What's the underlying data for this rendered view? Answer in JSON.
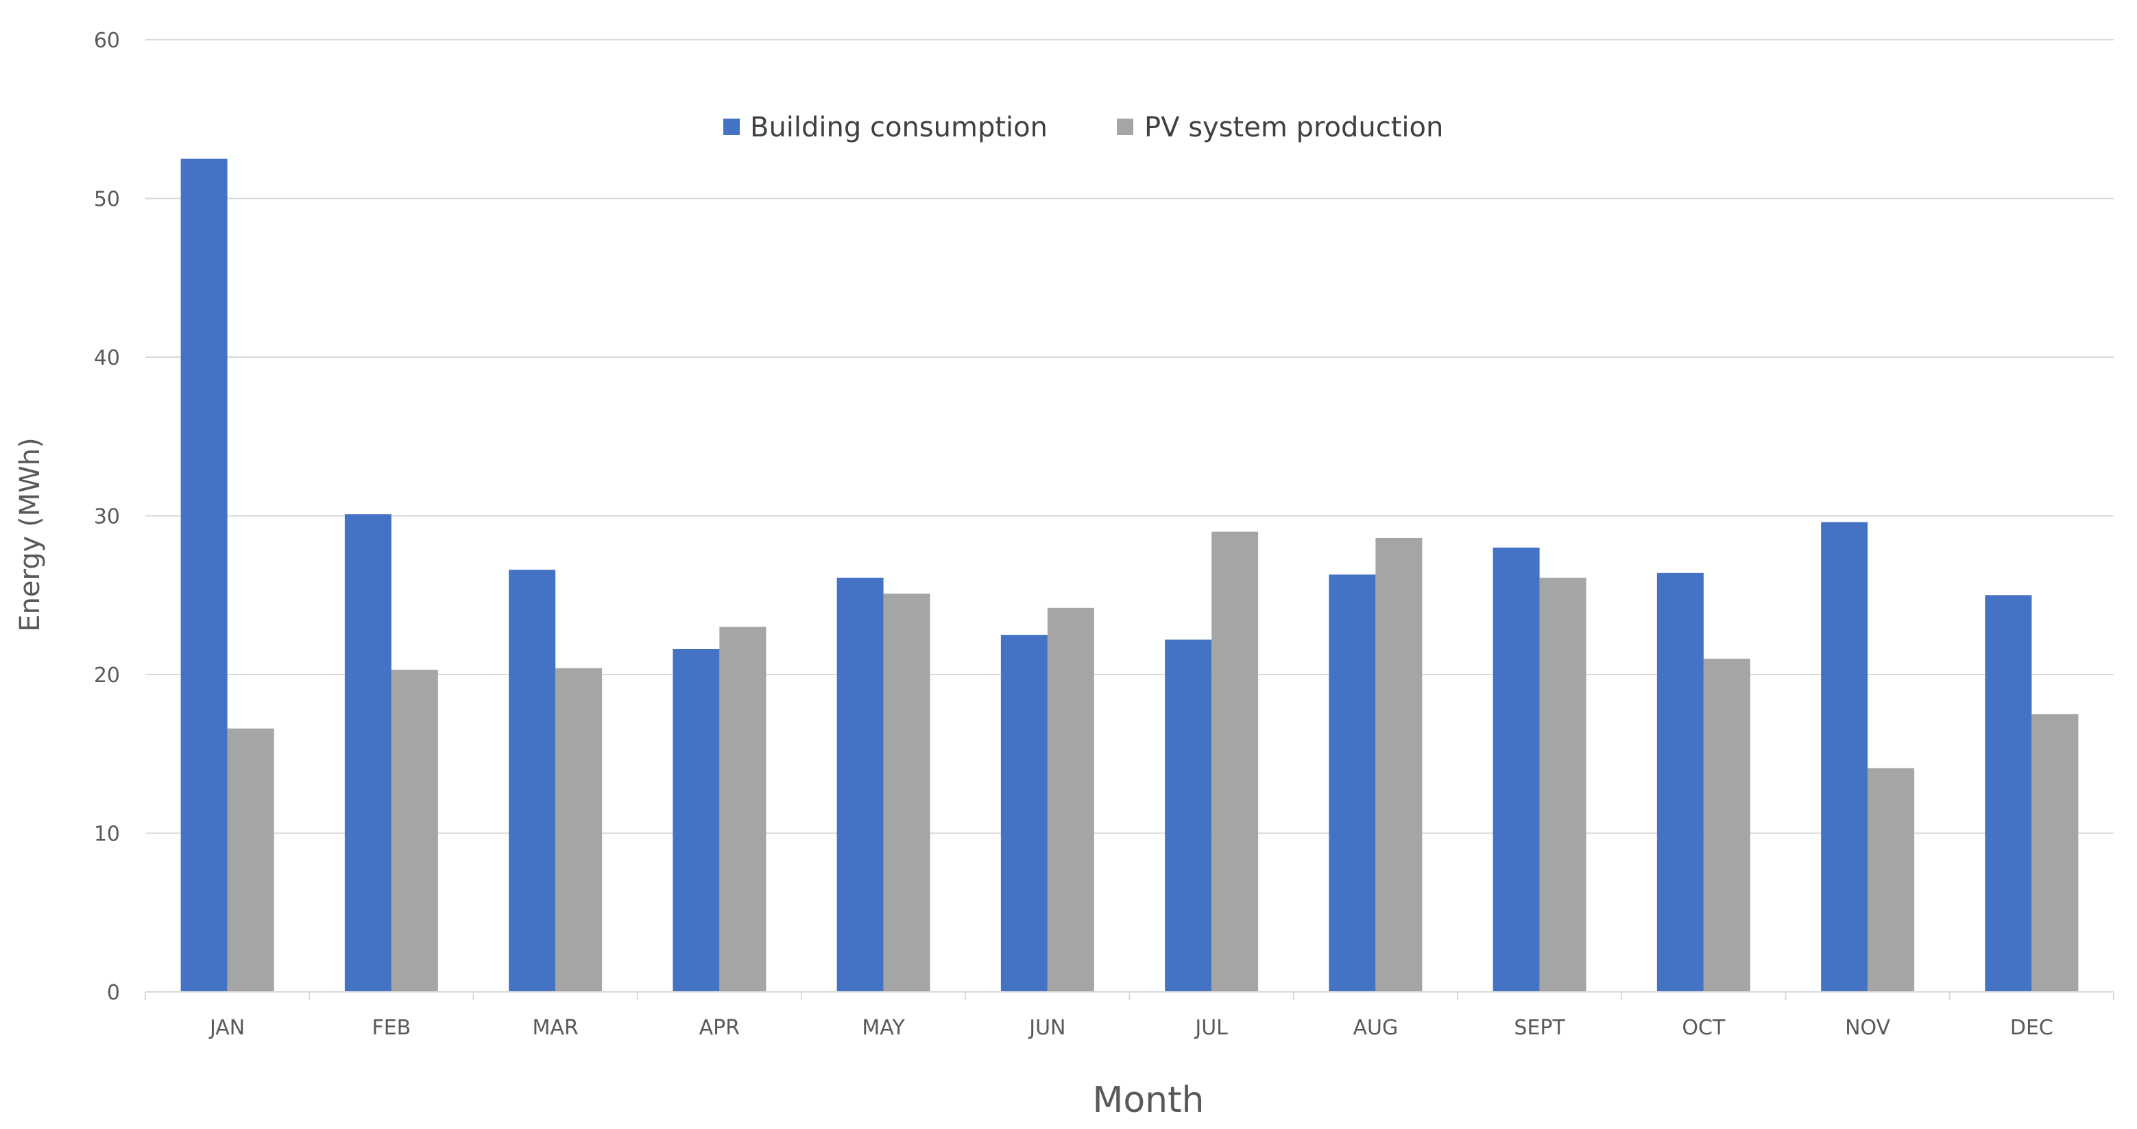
{
  "chart_data": {
    "type": "bar",
    "title": "",
    "xlabel": "Month",
    "ylabel": "Energy (MWh)",
    "ylim": [
      0,
      60
    ],
    "yticks": [
      0,
      10,
      20,
      30,
      40,
      50,
      60
    ],
    "grid": true,
    "legend_position": "top-center",
    "categories": [
      "JAN",
      "FEB",
      "MAR",
      "APR",
      "MAY",
      "JUN",
      "JUL",
      "AUG",
      "SEPT",
      "OCT",
      "NOV",
      "DEC"
    ],
    "series": [
      {
        "name": "Building consumption",
        "color": "#4472C4",
        "values": [
          52.5,
          30.1,
          26.6,
          21.6,
          26.1,
          22.5,
          22.2,
          26.3,
          28.0,
          26.4,
          29.6,
          25.0
        ]
      },
      {
        "name": "PV system production",
        "color": "#A5A5A5",
        "values": [
          16.6,
          20.3,
          20.4,
          23.0,
          25.1,
          24.2,
          29.0,
          28.6,
          26.1,
          21.0,
          14.1,
          17.5
        ]
      }
    ]
  }
}
